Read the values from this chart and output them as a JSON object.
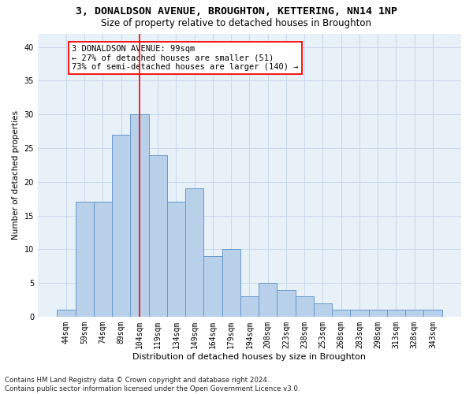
{
  "title": "3, DONALDSON AVENUE, BROUGHTON, KETTERING, NN14 1NP",
  "subtitle": "Size of property relative to detached houses in Broughton",
  "xlabel": "Distribution of detached houses by size in Broughton",
  "ylabel": "Number of detached properties",
  "bar_labels": [
    "44sqm",
    "59sqm",
    "74sqm",
    "89sqm",
    "104sqm",
    "119sqm",
    "134sqm",
    "149sqm",
    "164sqm",
    "179sqm",
    "194sqm",
    "208sqm",
    "223sqm",
    "238sqm",
    "253sqm",
    "268sqm",
    "283sqm",
    "298sqm",
    "313sqm",
    "328sqm",
    "343sqm"
  ],
  "bar_values": [
    1,
    17,
    17,
    27,
    30,
    24,
    17,
    19,
    9,
    10,
    3,
    5,
    4,
    3,
    2,
    1,
    1,
    1,
    1,
    1,
    1
  ],
  "bar_color": "#b8d0ea",
  "bar_edgecolor": "#6699cc",
  "bar_linewidth": 0.7,
  "vline_x": 4.0,
  "vline_color": "red",
  "vline_linewidth": 1.2,
  "annotation_text": "3 DONALDSON AVENUE: 99sqm\n← 27% of detached houses are smaller (51)\n73% of semi-detached houses are larger (140) →",
  "annotation_box_color": "white",
  "annotation_box_edgecolor": "red",
  "annotation_fontsize": 7.5,
  "ylim": [
    0,
    42
  ],
  "yticks": [
    0,
    5,
    10,
    15,
    20,
    25,
    30,
    35,
    40
  ],
  "grid_color": "#c8d8ec",
  "background_color": "#e8f0f8",
  "footnote": "Contains HM Land Registry data © Crown copyright and database right 2024.\nContains public sector information licensed under the Open Government Licence v3.0.",
  "title_fontsize": 9.5,
  "subtitle_fontsize": 8.5,
  "xlabel_fontsize": 8,
  "ylabel_fontsize": 7.5,
  "tick_fontsize": 7,
  "footnote_fontsize": 6.2
}
